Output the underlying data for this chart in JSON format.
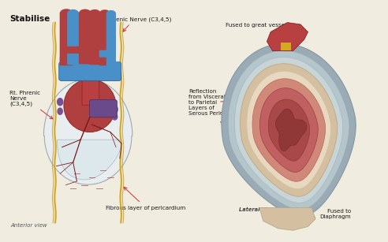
{
  "bg_color": "#f0ece0",
  "labels": {
    "top_left": "Stabilise",
    "lt_phrenic": "Lt. Phrenic Nerve (C3,4,5)",
    "rt_phrenic": "Rt. Phrenic\nNerve\n(C3,4,5)",
    "fused_vessels": "Fused to great vessels",
    "reflection": "Reflection\nfrom Visceral\nto Parietal\nLayers of\nSerous Peric.",
    "fibrous": "Fibrous layer of pericardium",
    "lateral_view": "Lateral View",
    "fused_diaphragm": "Fused to\nDiaphragm",
    "anterior_view": "Anterior view"
  },
  "colors": {
    "heart_red": "#c0392b",
    "heart_dark_red": "#8b2020",
    "aorta_blue": "#4a90c8",
    "pericardium_fibrous": "#d0d8dc",
    "pericardium_gray": "#b8c5cc",
    "pericardium_beige": "#d4b898",
    "pericardium_cream": "#e8d8c8",
    "nerve_yellow": "#d4a820",
    "arrow_red": "#c0392b",
    "text_dark": "#1a1a1a",
    "background": "#f0ece0",
    "purple": "#6a4a8a",
    "heart_pink": "#c87878",
    "heart_inner": "#a05050",
    "vessel_red": "#b03030",
    "white_peri": "#e8eef0"
  }
}
